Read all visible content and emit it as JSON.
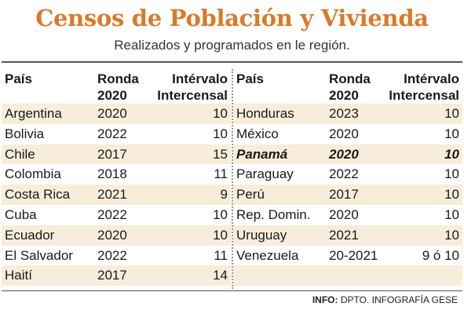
{
  "title": "Censos de Población y Vivienda",
  "subtitle": "Realizados y programados en le región.",
  "headers": {
    "pais": "País",
    "ronda_1": "Ronda",
    "ronda_2": "2020",
    "intervalo_1": "Intérvalo",
    "intervalo_2": "Intercensal"
  },
  "left_rows": [
    {
      "pais": "Argentina",
      "ronda": "2020",
      "intervalo": "10"
    },
    {
      "pais": "Bolivia",
      "ronda": "2022",
      "intervalo": "10"
    },
    {
      "pais": "Chile",
      "ronda": "2017",
      "intervalo": "15"
    },
    {
      "pais": "Colombia",
      "ronda": "2018",
      "intervalo": "11"
    },
    {
      "pais": "Costa Rica",
      "ronda": "2021",
      "intervalo": "9"
    },
    {
      "pais": "Cuba",
      "ronda": "2022",
      "intervalo": "10"
    },
    {
      "pais": "Ecuador",
      "ronda": "2020",
      "intervalo": "10"
    },
    {
      "pais": "El Salvador",
      "ronda": "2022",
      "intervalo": "11"
    },
    {
      "pais": "Haití",
      "ronda": "2017",
      "intervalo": "14"
    }
  ],
  "right_rows": [
    {
      "pais": "Honduras",
      "ronda": "2023",
      "intervalo": "10"
    },
    {
      "pais": "México",
      "ronda": "2020",
      "intervalo": "10"
    },
    {
      "pais": "Panamá",
      "ronda": "2020",
      "intervalo": "10"
    },
    {
      "pais": "Paraguay",
      "ronda": "2022",
      "intervalo": "10"
    },
    {
      "pais": "Perú",
      "ronda": "2017",
      "intervalo": "10"
    },
    {
      "pais": "Rep. Domin.",
      "ronda": "2020",
      "intervalo": "10"
    },
    {
      "pais": "Uruguay",
      "ronda": "2021",
      "intervalo": "10"
    },
    {
      "pais": "Venezuela",
      "ronda": "20-2021",
      "intervalo": "9 ó 10"
    },
    {
      "pais": "",
      "ronda": "",
      "intervalo": ""
    }
  ],
  "footer": {
    "label": "INFO:",
    "source": " DPTO. INFOGRAFÍA GESE"
  },
  "colors": {
    "title": "#d97a2b",
    "stripe": "#f7edda"
  }
}
